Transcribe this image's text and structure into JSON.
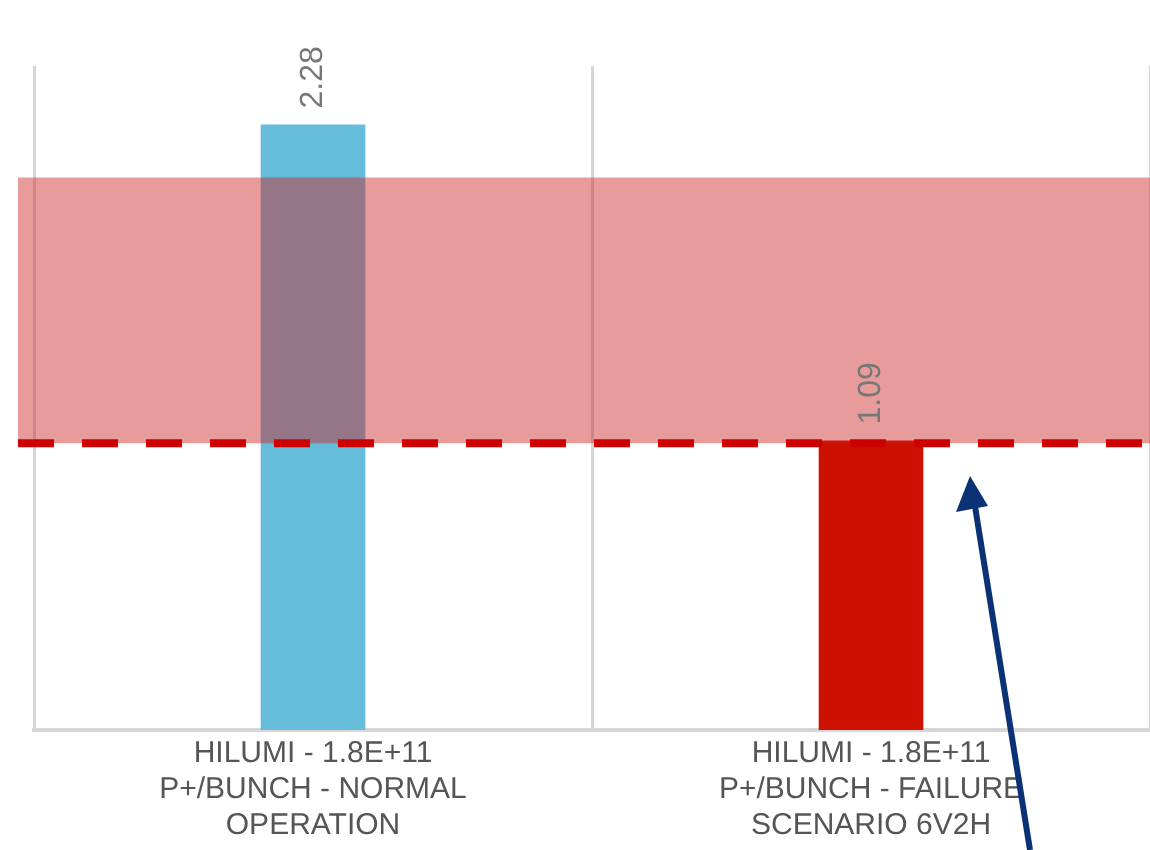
{
  "chart_data": {
    "type": "bar",
    "categories": [
      "HILUMI - 1.8E+11 P+/BUNCH - NORMAL OPERATION",
      "HILUMI - 1.8E+11 P+/BUNCH - FAILURE SCENARIO 6V2H"
    ],
    "values": [
      2.28,
      1.09
    ],
    "colors": [
      "#66bcdb",
      "#cc1100"
    ],
    "data_labels": true,
    "ylim": [
      0,
      2.5
    ],
    "tick_labels": "x",
    "grid": "x",
    "bands": [
      {
        "axis": "y",
        "from": 1.08,
        "to": 2.08,
        "color": "#cc2222"
      }
    ],
    "ref_lines": [
      {
        "axis": "y",
        "value": 1.08,
        "color": "#cc0000",
        "line_style": "dashed"
      }
    ]
  }
}
